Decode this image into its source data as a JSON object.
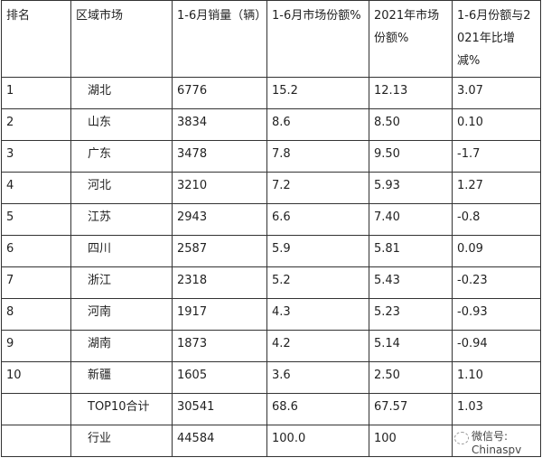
{
  "headers": [
    "排名",
    "区域市场",
    "1-6月销量（辆）",
    "1-6月市场份额%",
    "2021年市场份额%",
    "1-6月份额与2021年比增减%"
  ],
  "rows": [
    [
      "1",
      "湖北",
      "6776",
      "15.2",
      "12.13",
      "3.07"
    ],
    [
      "2",
      "山东",
      "3834",
      "8.6",
      "8.50",
      "0.10"
    ],
    [
      "3",
      "广东",
      "3478",
      "7.8",
      "9.50",
      "-1.7"
    ],
    [
      "4",
      "河北",
      "3210",
      "7.2",
      "5.93",
      "1.27"
    ],
    [
      "5",
      "江苏",
      "2943",
      "6.6",
      "7.40",
      "-0.8"
    ],
    [
      "6",
      "四川",
      "2587",
      "5.9",
      "5.81",
      "0.09"
    ],
    [
      "7",
      "浙江",
      "2318",
      "5.2",
      "5.43",
      "-0.23"
    ],
    [
      "8",
      "河南",
      "1917",
      "4.3",
      "5.23",
      "-0.93"
    ],
    [
      "9",
      "湖南",
      "1873",
      "4.2",
      "5.14",
      "-0.94"
    ],
    [
      "10",
      "新疆",
      "1605",
      "3.6",
      "2.50",
      "1.10"
    ],
    [
      "",
      "TOP10合计",
      "30541",
      "68.6",
      "67.57",
      "1.03"
    ],
    [
      "",
      "行业",
      "44584",
      "100.0",
      "100",
      ""
    ]
  ],
  "watermark": "微信号: Chinaspv"
}
